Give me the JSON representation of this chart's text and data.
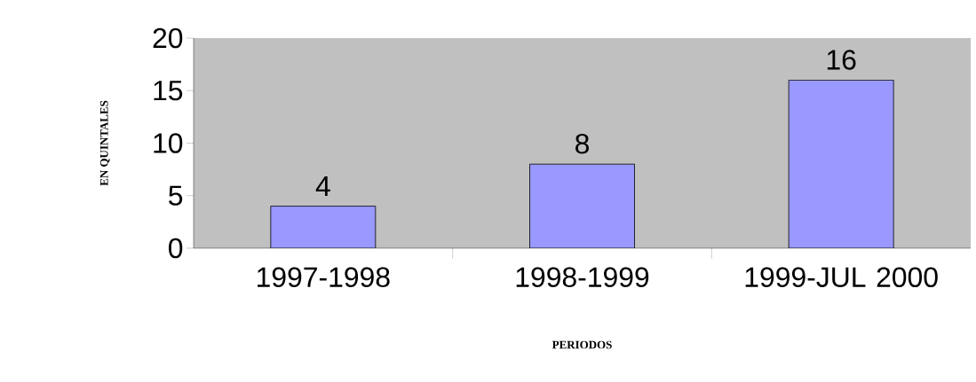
{
  "chart_data": {
    "type": "bar",
    "categories": [
      "1997-1998",
      "1998-1999",
      "1999-JUL 2000"
    ],
    "values": [
      4,
      8,
      16
    ],
    "color": "#9999ff",
    "xlabel": "PERIODOS",
    "ylabel": "EN QUINTALES",
    "ylim": [
      0,
      20
    ],
    "yticks": [
      0,
      5,
      10,
      15,
      20
    ],
    "data_labels": true,
    "grid": false
  }
}
